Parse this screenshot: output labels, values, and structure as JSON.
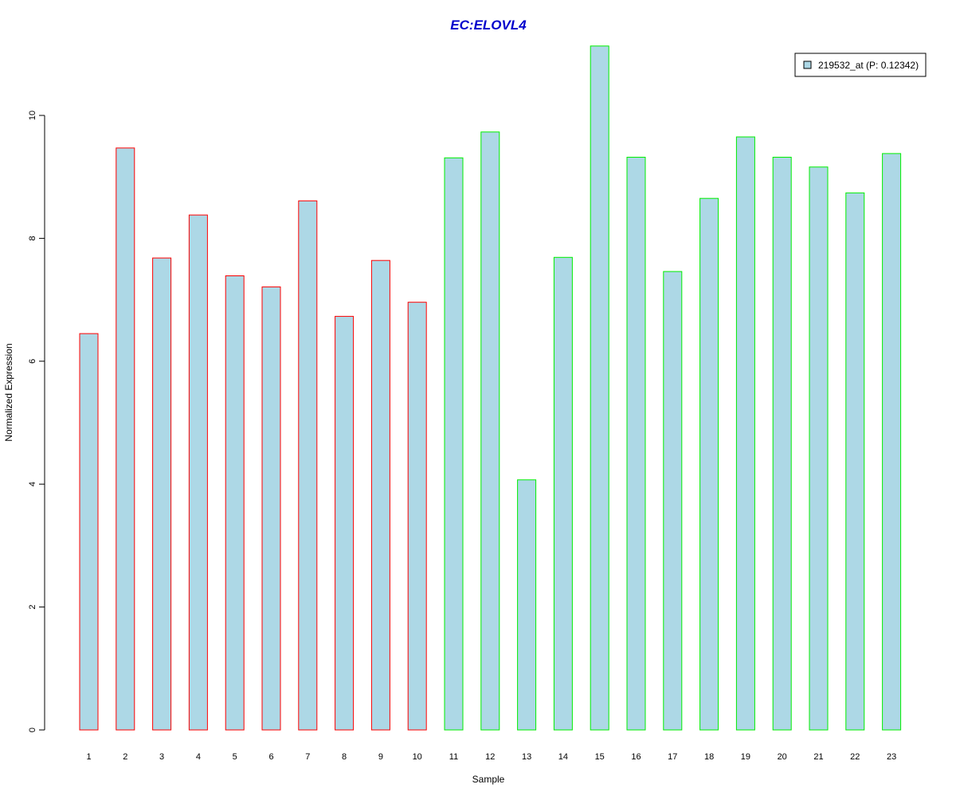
{
  "chart_data": {
    "type": "bar",
    "title": "EC:ELOVL4",
    "xlabel": "Sample",
    "ylabel": "Normalized Expression",
    "ylim": [
      0,
      11.2
    ],
    "yticks": [
      0,
      2,
      4,
      6,
      8,
      10
    ],
    "categories": [
      "1",
      "2",
      "3",
      "4",
      "5",
      "6",
      "7",
      "8",
      "9",
      "10",
      "11",
      "12",
      "13",
      "14",
      "15",
      "16",
      "17",
      "18",
      "19",
      "20",
      "21",
      "22",
      "23"
    ],
    "series": [
      {
        "name": "219532_at (P: 0.12342)",
        "fill": "#add8e6",
        "values": [
          6.45,
          9.47,
          7.68,
          8.38,
          7.39,
          7.21,
          8.61,
          6.73,
          7.64,
          6.96,
          9.31,
          9.73,
          4.07,
          7.69,
          11.13,
          9.32,
          7.46,
          8.65,
          9.65,
          9.32,
          9.16,
          8.74,
          9.38
        ],
        "border_colors": [
          "#ff0000",
          "#ff0000",
          "#ff0000",
          "#ff0000",
          "#ff0000",
          "#ff0000",
          "#ff0000",
          "#ff0000",
          "#ff0000",
          "#ff0000",
          "#00ee00",
          "#00ee00",
          "#00ee00",
          "#00ee00",
          "#00ee00",
          "#00ee00",
          "#00ee00",
          "#00ee00",
          "#00ee00",
          "#00ee00",
          "#00ee00",
          "#00ee00",
          "#00ee00"
        ]
      }
    ],
    "legend": {
      "position": "top-right",
      "label": "219532_at (P: 0.12342)"
    },
    "grid": false
  }
}
